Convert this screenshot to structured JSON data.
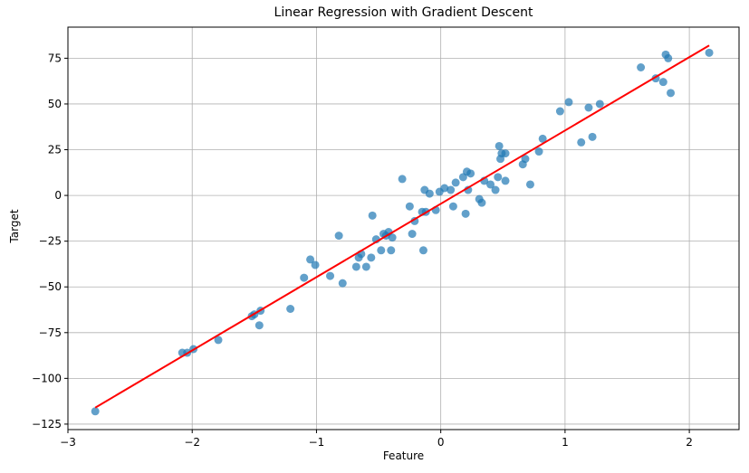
{
  "chart_data": {
    "type": "scatter",
    "title": "Linear Regression with Gradient Descent",
    "xlabel": "Feature",
    "ylabel": "Target",
    "xlim": [
      -3.0,
      2.4
    ],
    "ylim": [
      -128,
      92
    ],
    "xticks": [
      -3,
      -2,
      -1,
      0,
      1,
      2
    ],
    "xtick_labels": [
      "−3",
      "−2",
      "−1",
      "0",
      "1",
      "2"
    ],
    "yticks": [
      -125,
      -100,
      -75,
      -50,
      -25,
      0,
      25,
      50,
      75
    ],
    "ytick_labels": [
      "−125",
      "−100",
      "−75",
      "−50",
      "−25",
      "0",
      "25",
      "50",
      "75"
    ],
    "grid": true,
    "series": [
      {
        "kind": "scatter",
        "color": "#1f77b4",
        "alpha": 0.7,
        "x": [
          -2.78,
          -2.08,
          -2.04,
          -1.99,
          -1.79,
          -1.52,
          -1.5,
          -1.46,
          -1.45,
          -1.21,
          -1.1,
          -1.05,
          -1.01,
          -0.89,
          -0.82,
          -0.79,
          -0.68,
          -0.66,
          -0.64,
          -0.6,
          -0.56,
          -0.55,
          -0.52,
          -0.48,
          -0.46,
          -0.44,
          -0.42,
          -0.4,
          -0.39,
          -0.31,
          -0.25,
          -0.23,
          -0.21,
          -0.15,
          -0.14,
          -0.13,
          -0.12,
          -0.09,
          -0.04,
          -0.01,
          0.03,
          0.08,
          0.1,
          0.12,
          0.18,
          0.2,
          0.21,
          0.22,
          0.24,
          0.31,
          0.33,
          0.35,
          0.4,
          0.44,
          0.46,
          0.47,
          0.48,
          0.49,
          0.52,
          0.52,
          0.66,
          0.68,
          0.72,
          0.79,
          0.82,
          0.96,
          1.03,
          1.13,
          1.19,
          1.22,
          1.28,
          1.61,
          1.73,
          1.79,
          1.81,
          1.83,
          1.85,
          2.16
        ],
        "y": [
          -118,
          -86,
          -86,
          -84,
          -79,
          -66,
          -65,
          -71,
          -63,
          -62,
          -45,
          -35,
          -38,
          -44,
          -22,
          -48,
          -39,
          -34,
          -32,
          -39,
          -34,
          -11,
          -24,
          -30,
          -21,
          -22,
          -20,
          -30,
          -23,
          9,
          -6,
          -21,
          -14,
          -9,
          -30,
          3,
          -9,
          1,
          -8,
          2,
          4,
          3,
          -6,
          7,
          10,
          -10,
          13,
          3,
          12,
          -2,
          -4,
          8,
          6,
          3,
          10,
          27,
          20,
          23,
          23,
          8,
          17,
          20,
          6,
          24,
          31,
          46,
          51,
          29,
          48,
          32,
          50,
          70,
          64,
          62,
          77,
          75,
          56,
          78
        ]
      },
      {
        "kind": "line",
        "color": "#ff0000",
        "x": [
          -2.78,
          2.16
        ],
        "y": [
          -116,
          82
        ]
      }
    ]
  }
}
